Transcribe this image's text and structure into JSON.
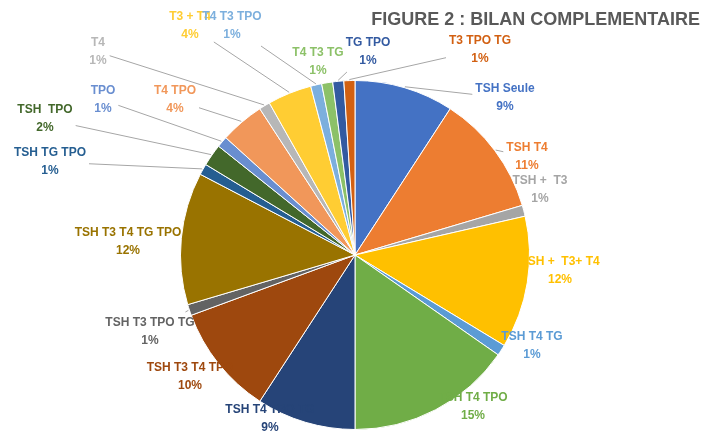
{
  "chart_data": {
    "type": "pie",
    "title": "FIGURE 2 : BILAN COMPLEMENTAIRE",
    "categories": [
      "TSH Seule",
      "TSH T4",
      "TSH +  T3",
      "TSH +  T3+ T4",
      "TSH T4 TG",
      "TSH T4 TPO",
      "TSH T4 TPO TG",
      "TSH T3 T4 TPO",
      "TSH T3 TPO TG",
      "TSH T3 T4 TG TPO",
      "TSH TG TPO",
      "TSH  TPO",
      "TPO",
      "T4 TPO",
      "T4",
      "T3 + T4",
      "T4 T3 TPO",
      "T4 T3 TG",
      "TG TPO",
      "T3 TPO TG"
    ],
    "values": [
      9,
      11,
      1,
      12,
      1,
      15,
      9,
      10,
      1,
      12,
      1,
      2,
      1,
      4,
      1,
      4,
      1,
      1,
      1,
      1
    ],
    "value_labels": [
      "9%",
      "11%",
      "1%",
      "12%",
      "1%",
      "15%",
      "9%",
      "10%",
      "1%",
      "12%",
      "1%",
      "2%",
      "1%",
      "4%",
      "1%",
      "4%",
      "1%",
      "1%",
      "1%",
      "1%"
    ],
    "colors": [
      "#4472c4",
      "#ed7d31",
      "#a5a5a5",
      "#ffc000",
      "#5b9bd5",
      "#70ad47",
      "#264478",
      "#9e480e",
      "#636363",
      "#997300",
      "#255e91",
      "#43682b",
      "#698ed0",
      "#f1975a",
      "#b7b7b7",
      "#ffcd33",
      "#7cafdd",
      "#8cc168",
      "#335aa1",
      "#d26012"
    ],
    "data_labels": true,
    "legend": false
  }
}
